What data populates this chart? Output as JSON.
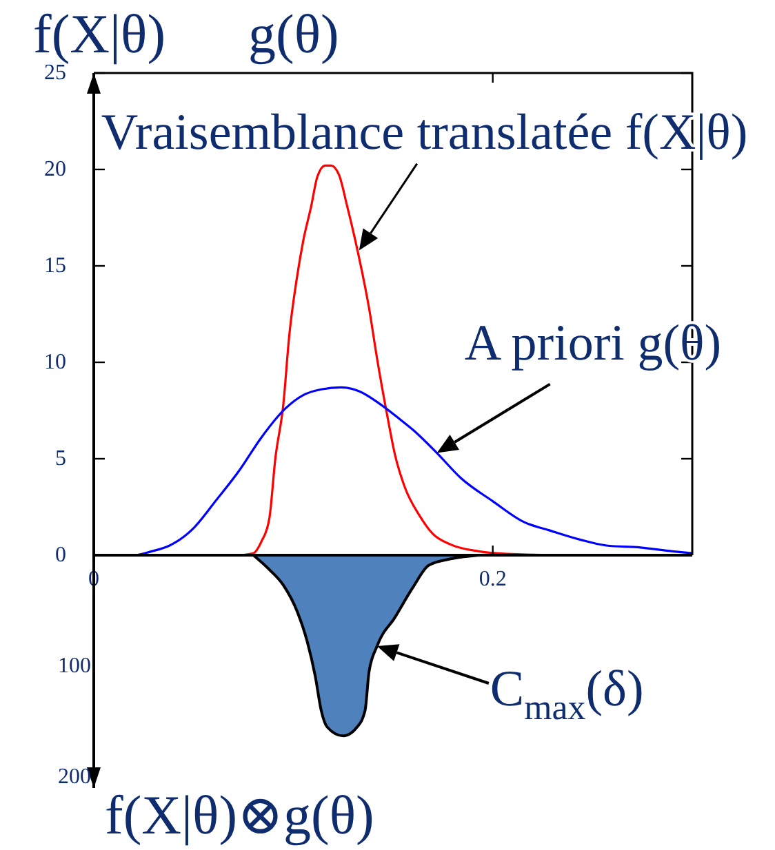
{
  "chart_data": [
    {
      "type": "line",
      "ylabel": "f(X|θ)      g(θ)",
      "xlim": [
        0,
        0.3
      ],
      "xticks": [
        0,
        0.2
      ],
      "ylim": [
        0,
        25
      ],
      "yticks": [
        0,
        5,
        10,
        15,
        20,
        25
      ],
      "series": [
        {
          "color": "#ff0000",
          "x": [
            0.073,
            0.08,
            0.084,
            0.088,
            0.091,
            0.095,
            0.098,
            0.102,
            0.105,
            0.109,
            0.112,
            0.116,
            0.119,
            0.123,
            0.127,
            0.132,
            0.138,
            0.142,
            0.147,
            0.151,
            0.156,
            0.163,
            0.17,
            0.179,
            0.193,
            0.207,
            0.24,
            0.293
          ],
          "values": [
            0,
            0.1,
            0.7,
            1.9,
            5.0,
            7.8,
            11.4,
            14.5,
            16.3,
            18.1,
            19.6,
            20.2,
            20.2,
            19.7,
            18.1,
            15.9,
            12.8,
            10.2,
            7.3,
            5.2,
            3.5,
            2.1,
            1.1,
            0.55,
            0.2,
            0.07,
            0,
            0
          ]
        },
        {
          "color": "#0000ff",
          "x": [
            0,
            0.02,
            0.029,
            0.038,
            0.05,
            0.061,
            0.073,
            0.084,
            0.096,
            0.105,
            0.114,
            0.124,
            0.133,
            0.144,
            0.154,
            0.16,
            0.172,
            0.184,
            0.2,
            0.216,
            0.228,
            0.244,
            0.257,
            0.274,
            0.29,
            0.3
          ],
          "values": [
            0,
            0,
            0.2,
            0.5,
            1.4,
            2.8,
            4.4,
            6.1,
            7.6,
            8.3,
            8.6,
            8.7,
            8.5,
            7.8,
            7.0,
            6.5,
            5.3,
            4.0,
            2.8,
            1.7,
            1.3,
            0.8,
            0.5,
            0.4,
            0.2,
            0.1
          ]
        }
      ],
      "annotations": [
        {
          "text": "Vraisemblance translatée f(X|θ)",
          "x": 0.133,
          "y": 15.8
        },
        {
          "text": "A priori g(θ)",
          "x": 0.172,
          "y": 5.3
        }
      ]
    },
    {
      "type": "area",
      "xlim": [
        0,
        0.3
      ],
      "ylim": [
        210,
        0
      ],
      "yticks": [
        100,
        200
      ],
      "tick_labels": "y",
      "color": "#4f81bd",
      "x": [
        0.08,
        0.088,
        0.095,
        0.102,
        0.107,
        0.111,
        0.114,
        0.117,
        0.125,
        0.132,
        0.136,
        0.138,
        0.142,
        0.151,
        0.16,
        0.168,
        0.18,
        0.193
      ],
      "values": [
        0,
        13,
        27,
        51,
        78,
        109,
        140,
        155,
        163,
        155,
        140,
        105,
        82,
        56,
        29,
        9,
        3,
        0
      ],
      "annotations": [
        {
          "text": "C$_{max}$(δ)",
          "x": 0.142,
          "y": 82
        },
        "f(X|θ)⊗g(θ)"
      ]
    }
  ]
}
